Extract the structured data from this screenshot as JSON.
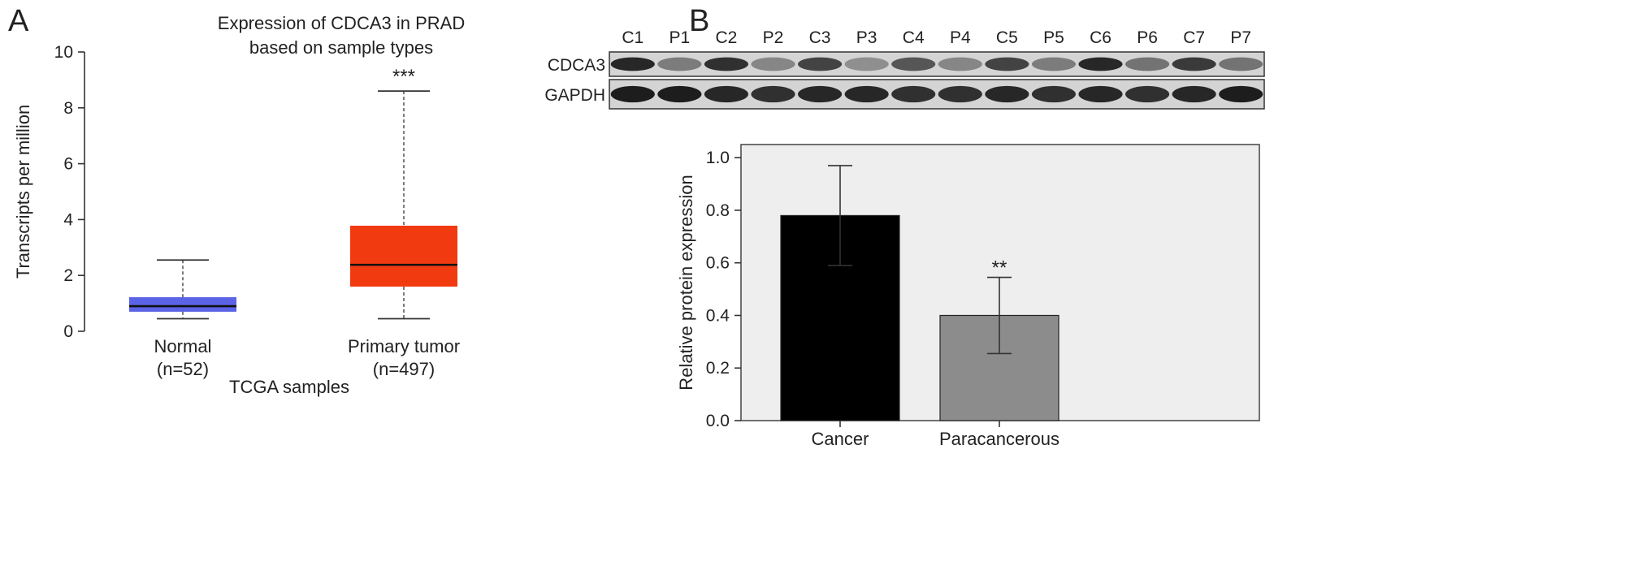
{
  "panels": {
    "a_letter": "A",
    "b_letter": "B"
  },
  "chart_data": [
    {
      "type": "box",
      "title_lines": [
        "Expression of CDCA3 in PRAD",
        "based on sample types"
      ],
      "xlabel": "TCGA samples",
      "ylabel": "Transcripts per million",
      "ylim": [
        0,
        10
      ],
      "yticks": [
        "0",
        "2",
        "4",
        "6",
        "8",
        "10"
      ],
      "grid": false,
      "categories": [
        {
          "label": "Normal",
          "n_label": "(n=52)",
          "whisker_low": 0.45,
          "q1": 0.7,
          "median": 0.9,
          "q3": 1.22,
          "whisker_high": 2.55,
          "color": "#5b63e6",
          "annotation": ""
        },
        {
          "label": "Primary tumor",
          "n_label": "(n=497)",
          "whisker_low": 0.45,
          "q1": 1.6,
          "median": 2.38,
          "q3": 3.78,
          "whisker_high": 8.6,
          "color": "#f23a10",
          "annotation": "***"
        }
      ]
    },
    {
      "type": "blot",
      "lanes": [
        "C1",
        "P1",
        "C2",
        "P2",
        "C3",
        "P3",
        "C4",
        "P4",
        "C5",
        "P5",
        "C6",
        "P6",
        "C7",
        "P7"
      ],
      "rows": [
        {
          "label": "CDCA3",
          "intensity": [
            0.85,
            0.4,
            0.8,
            0.35,
            0.7,
            0.3,
            0.6,
            0.35,
            0.7,
            0.4,
            0.85,
            0.45,
            0.75,
            0.45
          ]
        },
        {
          "label": "GAPDH",
          "intensity": [
            0.9,
            0.9,
            0.85,
            0.8,
            0.85,
            0.85,
            0.8,
            0.8,
            0.85,
            0.8,
            0.85,
            0.8,
            0.85,
            0.9
          ]
        }
      ]
    },
    {
      "type": "bar",
      "ylabel": "Relative protein expression",
      "xlabel": "",
      "ylim": [
        0,
        1.05
      ],
      "yticks": [
        "0.0",
        "0.2",
        "0.4",
        "0.6",
        "0.8",
        "1.0"
      ],
      "grid": false,
      "categories": [
        "Cancer",
        "Paracancerous"
      ],
      "values": [
        0.78,
        0.4
      ],
      "errors": [
        0.19,
        0.145
      ],
      "colors": [
        "#000000",
        "#8c8c8c"
      ],
      "annotations": [
        "",
        "**"
      ]
    }
  ]
}
